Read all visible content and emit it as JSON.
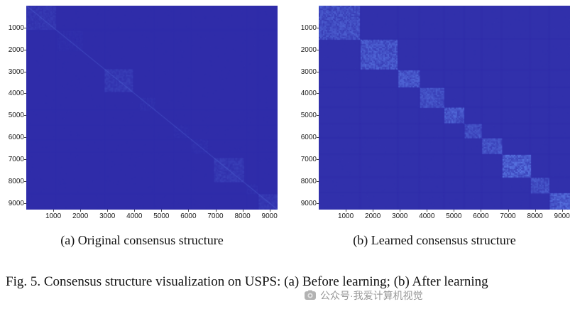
{
  "figure_caption": {
    "text": "Fig. 5.  Consensus structure visualization on USPS: (a) Before learning; (b) After learning"
  },
  "watermark": {
    "text": "公众号·我爱计算机视觉"
  },
  "colors": {
    "heatmap_background": "#2f2ca9",
    "heatmap_highlight": "#6f9bff",
    "tick_text": "#1a1a1a",
    "caption_text": "#111111"
  },
  "chart_data": [
    {
      "type": "heatmap",
      "caption": "(a) Original consensus structure",
      "axis_max": 9298,
      "x_ticks": [
        1000,
        2000,
        3000,
        4000,
        5000,
        6000,
        7000,
        8000,
        9000
      ],
      "y_ticks": [
        1000,
        2000,
        3000,
        4000,
        5000,
        6000,
        7000,
        8000,
        9000
      ],
      "background_color": "#2f2ca9",
      "block_color": "#6f9bff",
      "diagonal_line_alpha": 0.3,
      "noise_alpha": 0.05,
      "cross_band_alpha": 0.006,
      "diagonal_blocks": [
        {
          "start": 0,
          "end": 1100,
          "intensity": 0.1
        },
        {
          "start": 1150,
          "end": 2050,
          "intensity": 0.04
        },
        {
          "start": 2900,
          "end": 3900,
          "intensity": 0.15
        },
        {
          "start": 4200,
          "end": 4750,
          "intensity": 0.05
        },
        {
          "start": 5450,
          "end": 6000,
          "intensity": 0.04
        },
        {
          "start": 6100,
          "end": 6700,
          "intensity": 0.05
        },
        {
          "start": 6950,
          "end": 8050,
          "intensity": 0.15
        },
        {
          "start": 8150,
          "end": 8550,
          "intensity": 0.05
        },
        {
          "start": 8600,
          "end": 9298,
          "intensity": 0.13
        }
      ]
    },
    {
      "type": "heatmap",
      "caption": "(b) Learned consensus structure",
      "axis_max": 9298,
      "x_ticks": [
        1000,
        2000,
        3000,
        4000,
        5000,
        6000,
        7000,
        8000,
        9000
      ],
      "y_ticks": [
        1000,
        2000,
        3000,
        4000,
        5000,
        6000,
        7000,
        8000,
        9000
      ],
      "background_color": "#2f2ca9",
      "block_color": "#6f9bff",
      "diagonal_line_alpha": 0.22,
      "noise_alpha": 0.06,
      "cross_band_alpha": 0.02,
      "diagonal_blocks": [
        {
          "start": 0,
          "end": 1500,
          "intensity": 0.32
        },
        {
          "start": 1550,
          "end": 2900,
          "intensity": 0.4
        },
        {
          "start": 2950,
          "end": 3700,
          "intensity": 0.42
        },
        {
          "start": 3750,
          "end": 4600,
          "intensity": 0.36
        },
        {
          "start": 4650,
          "end": 5350,
          "intensity": 0.44
        },
        {
          "start": 5400,
          "end": 6000,
          "intensity": 0.33
        },
        {
          "start": 6050,
          "end": 6750,
          "intensity": 0.38
        },
        {
          "start": 6800,
          "end": 7800,
          "intensity": 0.52
        },
        {
          "start": 7850,
          "end": 8500,
          "intensity": 0.34
        },
        {
          "start": 8550,
          "end": 9298,
          "intensity": 0.5
        }
      ]
    }
  ]
}
